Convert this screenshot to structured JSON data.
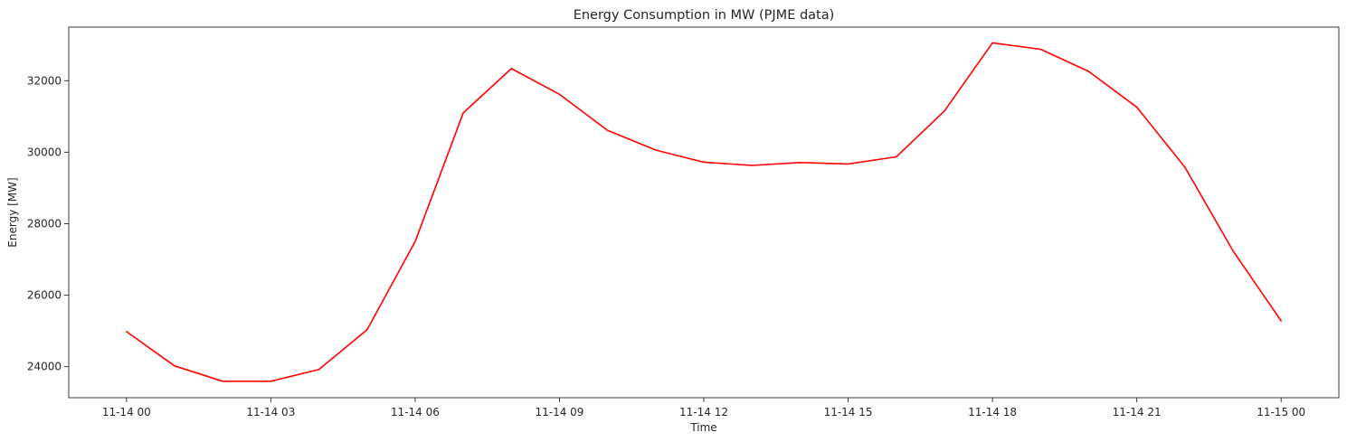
{
  "chart_data": {
    "type": "line",
    "title": "Energy Consumption in MW (PJME data)",
    "xlabel": "Time",
    "ylabel": "Energy [MW]",
    "x_tick_labels": [
      "11-14 00",
      "11-14 03",
      "11-14 06",
      "11-14 09",
      "11-14 12",
      "11-14 15",
      "11-14 18",
      "11-14 21",
      "11-15 00"
    ],
    "x_tick_hours": [
      0,
      3,
      6,
      9,
      12,
      15,
      18,
      21,
      24
    ],
    "y_ticks": [
      24000,
      26000,
      28000,
      30000,
      32000
    ],
    "y_tick_labels": [
      "24000",
      "26000",
      "28000",
      "30000",
      "32000"
    ],
    "xlim_hours": [
      -1.2,
      25.2
    ],
    "ylim": [
      23130,
      33500
    ],
    "grid": false,
    "series": [
      {
        "color": "#ff0000",
        "x_hours": [
          0,
          1,
          2,
          3,
          4,
          5,
          6,
          7,
          8,
          9,
          10,
          11,
          12,
          13,
          14,
          15,
          16,
          17,
          18,
          19,
          20,
          21,
          22,
          23,
          24
        ],
        "values": [
          24980,
          24020,
          23590,
          23590,
          23920,
          25030,
          27500,
          31100,
          32340,
          31620,
          30610,
          30060,
          29720,
          29630,
          29710,
          29670,
          29870,
          31150,
          33060,
          32880,
          32260,
          31260,
          29580,
          27240,
          25280
        ]
      }
    ]
  }
}
